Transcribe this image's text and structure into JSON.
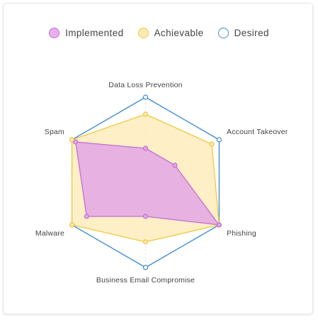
{
  "chart_data": {
    "type": "radar",
    "categories": [
      "Data Loss Prevention",
      "Account Takeover",
      "Phishing",
      "Business Email Compromise",
      "Malware",
      "Spam"
    ],
    "range": [
      0,
      10
    ],
    "grid": false,
    "legend_position": "top-center",
    "series": [
      {
        "name": "Implemented",
        "values": [
          4,
          4,
          10,
          4,
          8,
          9.5
        ],
        "stroke": "#c36fd0",
        "fill": "#e3a6e6",
        "fill_opacity": 0.85
      },
      {
        "name": "Achievable",
        "values": [
          8,
          9,
          10,
          7,
          10,
          10
        ],
        "stroke": "#f0c93d",
        "fill": "#fde9b4",
        "fill_opacity": 0.75
      },
      {
        "name": "Desired",
        "values": [
          10,
          10,
          10,
          10,
          10,
          10
        ],
        "stroke": "#3b8ad6",
        "fill": "none",
        "fill_opacity": 0
      }
    ]
  }
}
